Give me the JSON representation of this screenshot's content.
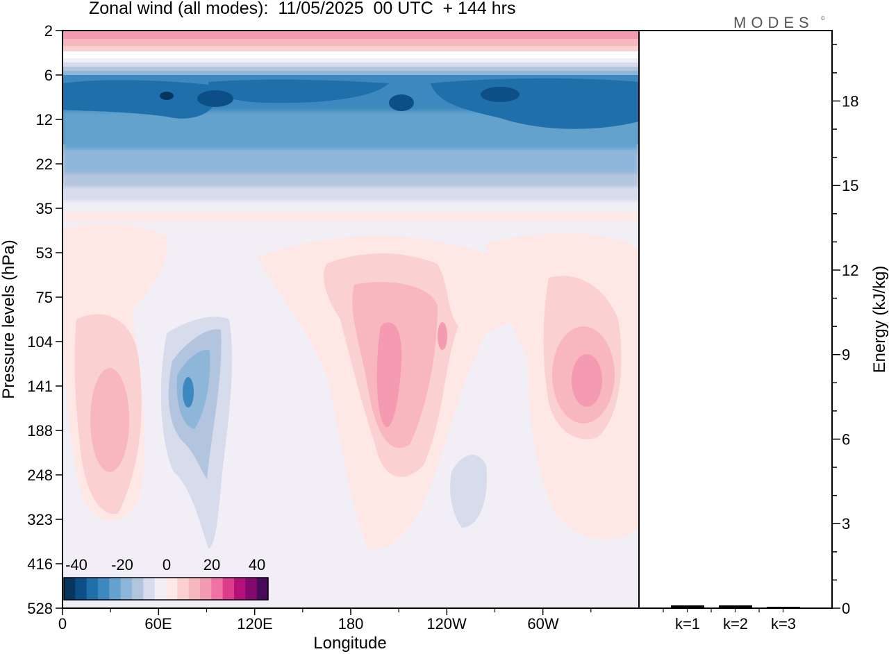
{
  "title": "Zonal wind (all modes):  11/05/2025  00 UTC  + 144 hrs",
  "logo": "MODES",
  "logo_mark": "©",
  "colors": {
    "palette": [
      "#08355e",
      "#0b4f86",
      "#1f6fab",
      "#3d89bf",
      "#62a2cc",
      "#8eb6d8",
      "#b3c4df",
      "#d6dcec",
      "#f2eef6",
      "#fde8e6",
      "#fbd0d0",
      "#f8b7bf",
      "#f59bb1",
      "#ef72a2",
      "#dd3c8e",
      "#b5107a",
      "#830a6c",
      "#4a0a5c"
    ],
    "energy_bars": "#000000"
  },
  "chart_data": [
    {
      "type": "heatmap",
      "title": "Zonal wind (all modes):  11/05/2025  00 UTC  + 144 hrs",
      "xlabel": "Longitude",
      "ylabel": "Pressure levels (hPa)",
      "x_ticks": [
        "0",
        "60E",
        "120E",
        "180",
        "120W",
        "60W"
      ],
      "x_tick_values": [
        0,
        60,
        120,
        180,
        240,
        300
      ],
      "xlim": [
        0,
        360
      ],
      "y_ticks": [
        "2",
        "6",
        "12",
        "22",
        "35",
        "53",
        "75",
        "104",
        "141",
        "188",
        "248",
        "323",
        "416",
        "528"
      ],
      "yscale": "model levels (top 2 hPa, bottom 528 hPa)",
      "colorbar": {
        "ticks": [
          "-40",
          "-20",
          "0",
          "20",
          "40"
        ],
        "range": [
          -45,
          45
        ],
        "step": 5
      },
      "fields": [
        {
          "name": "stratopause westerlies",
          "lon": [
            0,
            360
          ],
          "levels": [
            "2",
            "6"
          ],
          "value": 15
        },
        {
          "name": "upper stratospheric easterly jet",
          "lon": [
            0,
            360
          ],
          "levels": [
            "6",
            "22"
          ],
          "value": -35
        },
        {
          "name": "easterly core near 80E",
          "lon": [
            60,
            100
          ],
          "levels": [
            "104",
            "248"
          ],
          "value": -30
        },
        {
          "name": "westerly maximum near 30E",
          "lon": [
            15,
            45
          ],
          "levels": [
            "104",
            "248"
          ],
          "value": 15
        },
        {
          "name": "westerly maximum near 165W",
          "lon": [
            185,
            215
          ],
          "levels": [
            "75",
            "248"
          ],
          "value": 20
        },
        {
          "name": "westerly maximum near 30W",
          "lon": [
            315,
            345
          ],
          "levels": [
            "104",
            "188"
          ],
          "value": 20
        },
        {
          "name": "lower tropospheric weak winds",
          "lon": [
            0,
            360
          ],
          "levels": [
            "323",
            "528"
          ],
          "value": 0
        }
      ]
    },
    {
      "type": "bar",
      "categories": [
        "k=1",
        "k=2",
        "k=3"
      ],
      "values": [
        0.1,
        0.1,
        0.05
      ],
      "ylabel": "Energy (kJ/kg)",
      "ylim": [
        0,
        20.5
      ],
      "y_ticks": [
        0,
        3,
        6,
        9,
        12,
        15,
        18
      ]
    }
  ]
}
